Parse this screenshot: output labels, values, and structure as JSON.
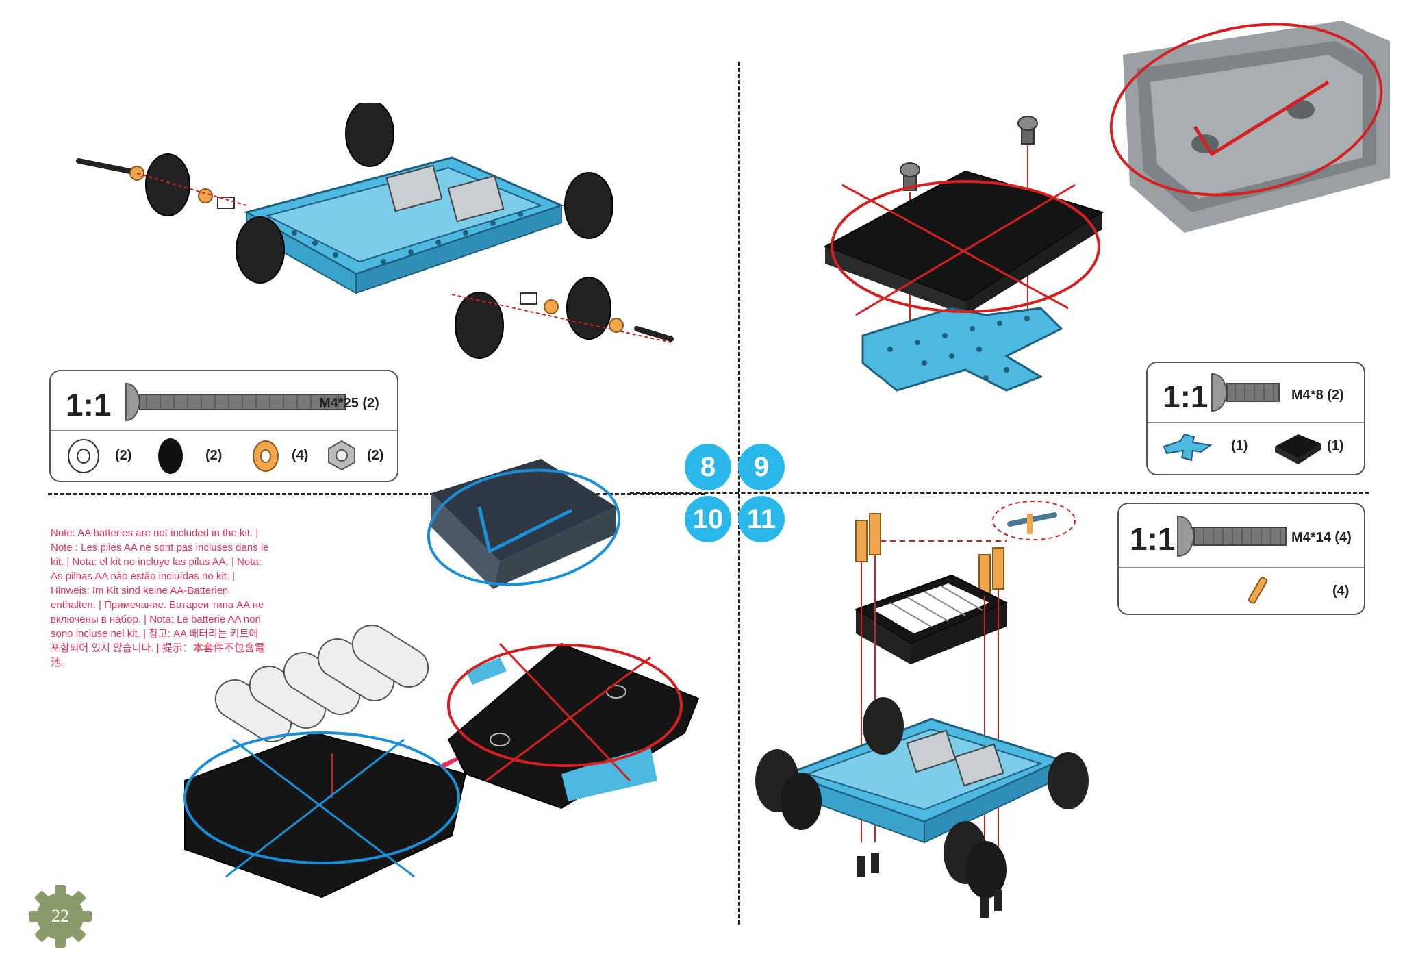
{
  "page": {
    "page_number": "22",
    "steps": [
      "8",
      "9",
      "10",
      "11"
    ]
  },
  "note": {
    "text": "Note: AA batteries are not included in the kit. | Note : Les piles AA ne sont pas incluses dans le kit. | Nota: el kit no incluye las pilas AA. | Nota: As pilhas AA não estão incluídas no kit. | Hinweis: Im Kit sind keine AA-Batterien enthalten. | Примечание. Батареи типа AA не включены в набор. | Nota: Le batterie AA non sono incluse nel kit. | 참고: AA 배터리는 키트에 포함되어 있지 않습니다. | 提示：本套件不包含電池。"
  },
  "step8_parts": {
    "scale": "1:1",
    "screw_spec": "M4*25 (2)",
    "spacer_qty": "(2)",
    "wheel_qty": "(2)",
    "bushing_qty": "(4)",
    "nut_qty": "(2)"
  },
  "step9_parts": {
    "scale": "1:1",
    "screw_spec": "M4*8 (2)",
    "plate_qty": "(1)",
    "block_qty": "(1)"
  },
  "step11_parts": {
    "scale": "1:1",
    "screw_spec": "M4*14 (4)",
    "standoff_qty": "(4)"
  },
  "colors": {
    "badge": "#29b8e9",
    "frame_blue": "#4db8e0",
    "note_red": "#e8325a",
    "mark_red": "#d42020",
    "mark_blue": "#1a8fd8"
  }
}
